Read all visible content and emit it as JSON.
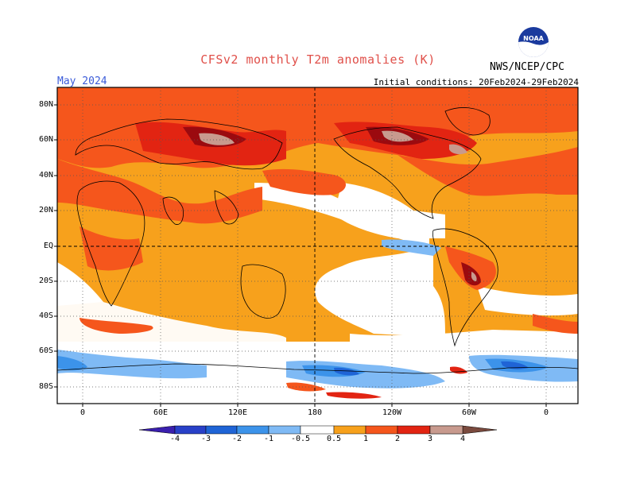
{
  "header": {
    "title": "CFSv2 monthly T2m anomalies (K)",
    "month": "May 2024",
    "initial_conditions": "Initial conditions: 20Feb2024-29Feb2024",
    "agency": "NWS/NCEP/CPC",
    "logo_text": "NOAA"
  },
  "latitude_labels": [
    "80N",
    "60N",
    "40N",
    "20N",
    "EQ",
    "20S",
    "40S",
    "60S",
    "80S"
  ],
  "longitude_labels": [
    "0",
    "60E",
    "120E",
    "180",
    "120W",
    "60W",
    "0"
  ],
  "colorbar": {
    "labels": [
      "-4",
      "-3",
      "-2",
      "-1",
      "-0.5",
      "0.5",
      "1",
      "2",
      "3",
      "4"
    ],
    "colors": [
      "#3a1fae",
      "#2840c8",
      "#1f64d6",
      "#3c93ea",
      "#7fbaf5",
      "#ffffff",
      "#f7a11c",
      "#f5561c",
      "#e22412",
      "#9b0a0f",
      "#c89a8e",
      "#7a4a3e"
    ]
  }
}
